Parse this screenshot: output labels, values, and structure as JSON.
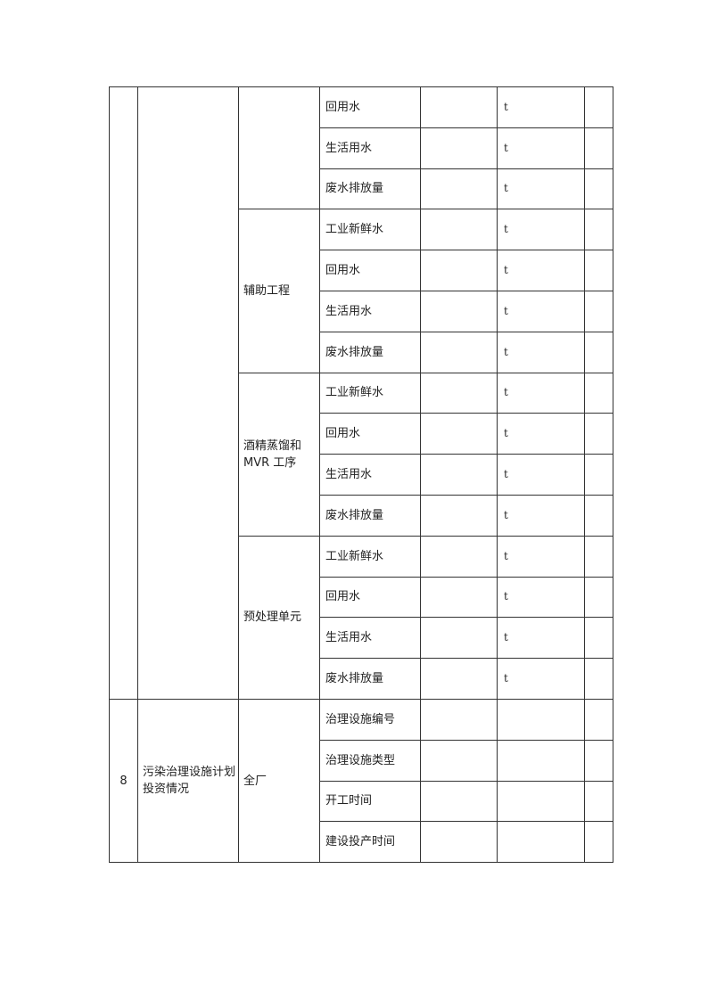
{
  "section_prev": {
    "groups": [
      {
        "name": "",
        "items": [
          {
            "label": "回用水",
            "unit": "t"
          },
          {
            "label": "生活用水",
            "unit": "t"
          },
          {
            "label": "废水排放量",
            "unit": "t"
          }
        ]
      },
      {
        "name": "辅助工程",
        "items": [
          {
            "label": "工业新鲜水",
            "unit": "t"
          },
          {
            "label": "回用水",
            "unit": "t"
          },
          {
            "label": "生活用水",
            "unit": "t"
          },
          {
            "label": "废水排放量",
            "unit": "t"
          }
        ]
      },
      {
        "name": "酒精蒸馏和MVR 工序",
        "items": [
          {
            "label": "工业新鲜水",
            "unit": "t"
          },
          {
            "label": "回用水",
            "unit": "t"
          },
          {
            "label": "生活用水",
            "unit": "t"
          },
          {
            "label": "废水排放量",
            "unit": "t"
          }
        ]
      },
      {
        "name": "预处理单元",
        "items": [
          {
            "label": "工业新鲜水",
            "unit": "t"
          },
          {
            "label": "回用水",
            "unit": "t"
          },
          {
            "label": "生活用水",
            "unit": "t"
          },
          {
            "label": "废水排放量",
            "unit": "t"
          }
        ]
      }
    ]
  },
  "section_8": {
    "number": "8",
    "title": "污染治理设施计划投资情况",
    "scope": "全厂",
    "items": [
      {
        "label": "治理设施编号",
        "unit": ""
      },
      {
        "label": "治理设施类型",
        "unit": ""
      },
      {
        "label": "开工时间",
        "unit": ""
      },
      {
        "label": "建设投产时间",
        "unit": ""
      }
    ]
  }
}
